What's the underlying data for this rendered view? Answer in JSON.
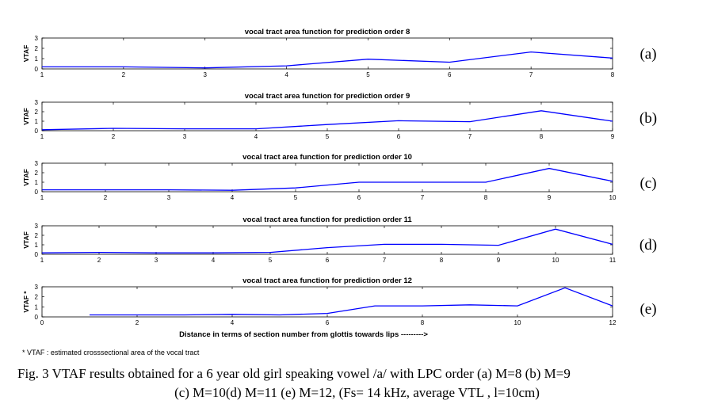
{
  "chart_data": [
    {
      "type": "line",
      "panel_label": "(a)",
      "title": "vocal tract area  function for  prediction order 8",
      "ylabel": "VTAF",
      "x": [
        1,
        2,
        3,
        4,
        5,
        6,
        7,
        8
      ],
      "values": [
        0.2,
        0.2,
        0.1,
        0.3,
        0.95,
        0.65,
        1.65,
        1.05
      ],
      "xlim": [
        1,
        8
      ],
      "ylim": [
        0,
        3
      ],
      "xticks": [
        "1",
        "2",
        "3",
        "4",
        "5",
        "6",
        "7",
        "8"
      ],
      "yticks": [
        "0",
        "1",
        "2",
        "3"
      ],
      "color": "#0000ff"
    },
    {
      "type": "line",
      "panel_label": "(b)",
      "title": "vocal tract area  function for  prediction order 9",
      "ylabel": "VTAF",
      "x": [
        1,
        2,
        3,
        4,
        5,
        6,
        7,
        8,
        9
      ],
      "values": [
        0.1,
        0.25,
        0.2,
        0.2,
        0.65,
        1.05,
        0.95,
        2.1,
        1.0
      ],
      "xlim": [
        1,
        9
      ],
      "ylim": [
        0,
        3
      ],
      "xticks": [
        "1",
        "2",
        "3",
        "4",
        "5",
        "6",
        "7",
        "8",
        "9"
      ],
      "yticks": [
        "0",
        "1",
        "2",
        "3"
      ],
      "color": "#0000ff"
    },
    {
      "type": "line",
      "panel_label": "(c)",
      "title": "vocal tract area  function for  prediction order 10",
      "ylabel": "VTAF",
      "x": [
        1,
        2,
        3,
        4,
        5,
        6,
        7,
        8,
        9,
        10
      ],
      "values": [
        0.2,
        0.2,
        0.2,
        0.15,
        0.4,
        1.0,
        1.0,
        1.0,
        2.45,
        1.1
      ],
      "xlim": [
        1,
        10
      ],
      "ylim": [
        0,
        3
      ],
      "xticks": [
        "1",
        "2",
        "3",
        "4",
        "5",
        "6",
        "7",
        "8",
        "9",
        "10"
      ],
      "yticks": [
        "0",
        "1",
        "2",
        "3"
      ],
      "color": "#0000ff"
    },
    {
      "type": "line",
      "panel_label": "(d)",
      "title": "vocal tract area  function for  prediction order 11",
      "ylabel": "VTAF",
      "x": [
        1,
        2,
        3,
        4,
        5,
        6,
        7,
        8,
        9,
        10,
        11
      ],
      "values": [
        0.15,
        0.2,
        0.15,
        0.15,
        0.2,
        0.7,
        1.05,
        1.05,
        0.95,
        2.65,
        1.05
      ],
      "xlim": [
        1,
        11
      ],
      "ylim": [
        0,
        3
      ],
      "xticks": [
        "1",
        "2",
        "3",
        "4",
        "5",
        "6",
        "7",
        "8",
        "9",
        "10",
        "11"
      ],
      "yticks": [
        "0",
        "1",
        "2",
        "3"
      ],
      "color": "#0000ff"
    },
    {
      "type": "line",
      "panel_label": "(e)",
      "title": "vocal tract area  function for  prediction order 12",
      "ylabel": "VTAF *",
      "x": [
        1,
        2,
        3,
        4,
        5,
        6,
        7,
        8,
        9,
        10,
        11,
        12
      ],
      "values": [
        0.2,
        0.2,
        0.2,
        0.25,
        0.2,
        0.35,
        1.1,
        1.1,
        1.2,
        1.1,
        2.9,
        1.1
      ],
      "xlim": [
        0,
        12
      ],
      "ylim": [
        0,
        3
      ],
      "xticks": [
        "0",
        "2",
        "4",
        "6",
        "8",
        "10",
        "12"
      ],
      "yticks": [
        "0",
        "1",
        "2",
        "3"
      ],
      "xlabel": "Distance in terms of section number from glottis towards lips --------->",
      "color": "#0000ff"
    }
  ],
  "footnote": "* VTAF : estimated crosssectional area of the vocal tract",
  "caption_line1": "Fig.  3  VTAF results obtained for a  6  year old girl  speaking  vowel /a/ with LPC order (a) M=8 (b) M=9",
  "caption_line2": "(c) M=10(d) M=11 (e) M=12, (Fs= 14 kHz, average VTL , l=10cm)"
}
